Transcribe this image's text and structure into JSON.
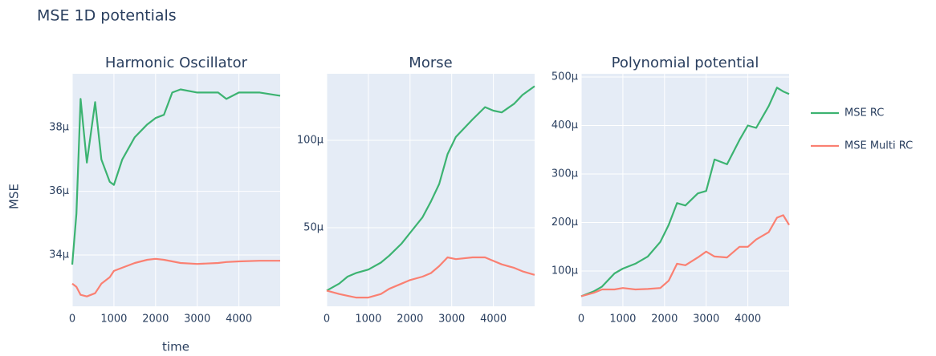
{
  "title": "MSE 1D potentials",
  "ylabel": "MSE",
  "xlabel": "time",
  "chart_data": [
    {
      "type": "line",
      "title": "Harmonic Oscillator",
      "grid": true,
      "x": [
        0,
        100,
        200,
        350,
        550,
        700,
        900,
        1000,
        1200,
        1500,
        1800,
        2000,
        2200,
        2400,
        2600,
        3000,
        3500,
        3700,
        4000,
        4500,
        4990
      ],
      "xlim": [
        0,
        4990
      ],
      "xticks": [
        0,
        1000,
        2000,
        3000,
        4000
      ],
      "ylim": [
        3.239e-05,
        3.969e-05
      ],
      "yticks": [
        {
          "value": 3.4e-05,
          "label": "34µ"
        },
        {
          "value": 3.6e-05,
          "label": "36µ"
        },
        {
          "value": 3.8e-05,
          "label": "38µ"
        }
      ],
      "series": [
        {
          "name": "MSE RC",
          "color": "#3cb371",
          "values": [
            3.37e-05,
            3.53e-05,
            3.89e-05,
            3.69e-05,
            3.88e-05,
            3.7e-05,
            3.63e-05,
            3.62e-05,
            3.7e-05,
            3.77e-05,
            3.81e-05,
            3.83e-05,
            3.84e-05,
            3.91e-05,
            3.92e-05,
            3.91e-05,
            3.91e-05,
            3.89e-05,
            3.91e-05,
            3.91e-05,
            3.9e-05
          ]
        },
        {
          "name": "MSE Multi RC",
          "color": "#fa8072",
          "values": [
            3.31e-05,
            3.3e-05,
            3.275e-05,
            3.27e-05,
            3.28e-05,
            3.31e-05,
            3.33e-05,
            3.35e-05,
            3.36e-05,
            3.375e-05,
            3.385e-05,
            3.388e-05,
            3.385e-05,
            3.38e-05,
            3.375e-05,
            3.372e-05,
            3.375e-05,
            3.378e-05,
            3.38e-05,
            3.382e-05,
            3.382e-05
          ]
        }
      ]
    },
    {
      "type": "line",
      "title": "Morse",
      "grid": true,
      "x": [
        0,
        300,
        500,
        700,
        1000,
        1300,
        1500,
        1800,
        2000,
        2300,
        2500,
        2700,
        2900,
        3100,
        3500,
        3800,
        4000,
        4200,
        4500,
        4700,
        4990
      ],
      "xlim": [
        0,
        4990
      ],
      "xticks": [
        0,
        1000,
        2000,
        3000,
        4000
      ],
      "ylim": [
        5e-06,
        0.0001381
      ],
      "yticks": [
        {
          "value": 5e-05,
          "label": "50µ"
        },
        {
          "value": 0.0001,
          "label": "100µ"
        }
      ],
      "series": [
        {
          "color": "#3cb371",
          "values": [
            1.4e-05,
            1.8e-05,
            2.2e-05,
            2.4e-05,
            2.6e-05,
            3e-05,
            3.4e-05,
            4.1e-05,
            4.7e-05,
            5.6e-05,
            6.5e-05,
            7.5e-05,
            9.2e-05,
            0.000102,
            0.000112,
            0.000119,
            0.000117,
            0.000116,
            0.000121,
            0.000126,
            0.000131
          ]
        },
        {
          "color": "#fa8072",
          "values": [
            1.4e-05,
            1.2e-05,
            1.1e-05,
            1e-05,
            1e-05,
            1.2e-05,
            1.5e-05,
            1.8e-05,
            2e-05,
            2.2e-05,
            2.4e-05,
            2.8e-05,
            3.3e-05,
            3.2e-05,
            3.3e-05,
            3.3e-05,
            3.1e-05,
            2.9e-05,
            2.7e-05,
            2.5e-05,
            2.3e-05
          ]
        }
      ]
    },
    {
      "type": "line",
      "title": "Polynomial potential",
      "grid": true,
      "x": [
        0,
        300,
        500,
        800,
        1000,
        1300,
        1600,
        1900,
        2100,
        2300,
        2500,
        2800,
        3000,
        3200,
        3500,
        3800,
        4000,
        4200,
        4500,
        4700,
        4850,
        4990
      ],
      "xlim": [
        0,
        4990
      ],
      "xticks": [
        0,
        1000,
        2000,
        3000,
        4000
      ],
      "ylim": [
        2.73e-05,
        0.0005066
      ],
      "yticks": [
        {
          "value": 0.0001,
          "label": "100µ"
        },
        {
          "value": 0.0002,
          "label": "200µ"
        },
        {
          "value": 0.0003,
          "label": "300µ"
        },
        {
          "value": 0.0004,
          "label": "400µ"
        },
        {
          "value": 0.0005,
          "label": "500µ"
        }
      ],
      "series": [
        {
          "color": "#3cb371",
          "values": [
            4.8e-05,
            5.8e-05,
            6.8e-05,
            9.5e-05,
            0.000105,
            0.000115,
            0.00013,
            0.00016,
            0.000195,
            0.00024,
            0.000235,
            0.00026,
            0.000265,
            0.00033,
            0.00032,
            0.00037,
            0.0004,
            0.000395,
            0.00044,
            0.000478,
            0.00047,
            0.000465
          ]
        },
        {
          "color": "#fa8072",
          "values": [
            4.8e-05,
            5.5e-05,
            6.2e-05,
            6.2e-05,
            6.5e-05,
            6.2e-05,
            6.3e-05,
            6.5e-05,
            8e-05,
            0.000115,
            0.000112,
            0.000128,
            0.00014,
            0.00013,
            0.000128,
            0.00015,
            0.00015,
            0.000165,
            0.00018,
            0.00021,
            0.000215,
            0.000195
          ]
        }
      ]
    }
  ]
}
